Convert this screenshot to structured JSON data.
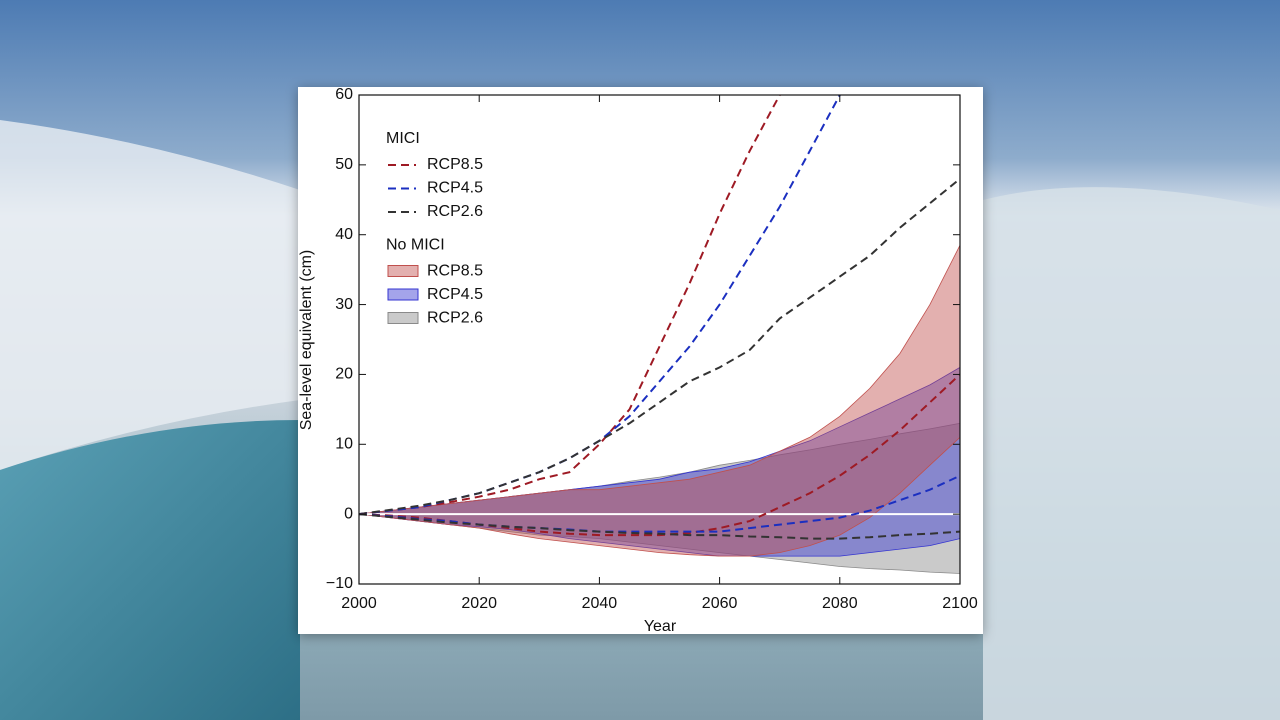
{
  "chart_data": {
    "type": "line",
    "xlabel": "Year",
    "ylabel": "Sea-level equivalent (cm)",
    "x": [
      2000,
      2005,
      2010,
      2015,
      2020,
      2025,
      2030,
      2035,
      2040,
      2045,
      2050,
      2055,
      2060,
      2065,
      2070,
      2075,
      2080,
      2085,
      2090,
      2095,
      2100
    ],
    "xlim": [
      2000,
      2100
    ],
    "xticks": [
      2000,
      2020,
      2040,
      2060,
      2080,
      2100
    ],
    "ylim": [
      -10,
      60
    ],
    "yticks": [
      {
        "value": -10,
        "label": "−10"
      },
      0,
      10,
      20,
      30,
      40,
      50,
      60
    ],
    "legend_titles": [
      "MICI",
      "No MICI"
    ],
    "series": [
      {
        "name": "RCP8.5",
        "style": "dashed",
        "color": "#9e1a24",
        "values": [
          0,
          0.5,
          1,
          1.7,
          2.5,
          3.5,
          5,
          6,
          10,
          15,
          24,
          33,
          43,
          52,
          60,
          null,
          null,
          null,
          null,
          null,
          null
        ]
      },
      {
        "name": "RCP4.5",
        "style": "dashed",
        "color": "#1b2fc0",
        "values": [
          0,
          0.5,
          1,
          2,
          3,
          4.5,
          6,
          8,
          10.5,
          14,
          19,
          24,
          30,
          37,
          44,
          52,
          60,
          null,
          null,
          null,
          null
        ]
      },
      {
        "name": "RCP2.6",
        "style": "dashed",
        "color": "#333333",
        "values": [
          0,
          0.6,
          1.2,
          2,
          3,
          4.5,
          6,
          8,
          10.5,
          13,
          16,
          19,
          21,
          23.5,
          28,
          31,
          34,
          37,
          41,
          44.5,
          48
        ]
      },
      {
        "name": "RCP8.5",
        "style": "band",
        "color": "#c0504d",
        "line_color": "#9e1a24",
        "upper": [
          0,
          0.5,
          1,
          1.5,
          2,
          2.5,
          3,
          3.5,
          3.5,
          4,
          4.5,
          5,
          6,
          7,
          9,
          11,
          14,
          18,
          23,
          30,
          38.5
        ],
        "lower": [
          0,
          -0.5,
          -1,
          -1.5,
          -2,
          -2.8,
          -3.5,
          -4,
          -4.5,
          -5,
          -5.5,
          -5.8,
          -6,
          -6,
          -5.5,
          -4.5,
          -3,
          -0.5,
          3,
          7,
          11
        ],
        "values": [
          0,
          -0.2,
          -0.5,
          -1,
          -1.5,
          -2,
          -2.5,
          -2.8,
          -3,
          -3,
          -3,
          -2.7,
          -2,
          -1,
          1,
          3,
          5.5,
          8.5,
          12,
          16,
          20
        ]
      },
      {
        "name": "RCP4.5",
        "style": "band",
        "color": "#3535d0",
        "line_color": "#1b2fc0",
        "upper": [
          0,
          0.5,
          1,
          1.5,
          2,
          2.5,
          3,
          3.5,
          4,
          4.5,
          5,
          6,
          6.5,
          7.5,
          9,
          10.5,
          12.5,
          14.5,
          16.5,
          18.5,
          21
        ],
        "lower": [
          0,
          -0.5,
          -1,
          -1.5,
          -1.8,
          -2.2,
          -2.8,
          -3.5,
          -4,
          -4.5,
          -5,
          -5.5,
          -6,
          -6,
          -6,
          -6,
          -6,
          -5.5,
          -5,
          -4.5,
          -3.5
        ],
        "values": [
          0,
          -0.3,
          -0.7,
          -1,
          -1.5,
          -1.8,
          -2,
          -2.2,
          -2.5,
          -2.5,
          -2.5,
          -2.5,
          -2.5,
          -2,
          -1.5,
          -1,
          -0.5,
          0.5,
          2,
          3.5,
          5.5
        ]
      },
      {
        "name": "RCP2.6",
        "style": "band",
        "color": "#8a8a8a",
        "line_color": "#333333",
        "upper": [
          0,
          0.5,
          1,
          1.5,
          2,
          2.5,
          3,
          3.5,
          4,
          4.7,
          5.3,
          6,
          7,
          7.7,
          8.5,
          9.2,
          10,
          10.7,
          11.5,
          12.2,
          13
        ],
        "lower": [
          0,
          -0.5,
          -1,
          -1.5,
          -2,
          -2.5,
          -3,
          -3.2,
          -3.5,
          -4,
          -4.5,
          -5,
          -5.5,
          -6,
          -6.5,
          -7,
          -7.5,
          -7.8,
          -8,
          -8.3,
          -8.5
        ],
        "values": [
          0,
          -0.4,
          -0.8,
          -1.2,
          -1.5,
          -1.8,
          -2,
          -2.3,
          -2.5,
          -2.7,
          -2.8,
          -3,
          -3,
          -3.2,
          -3.3,
          -3.5,
          -3.5,
          -3.3,
          -3,
          -2.8,
          -2.5
        ]
      }
    ]
  }
}
